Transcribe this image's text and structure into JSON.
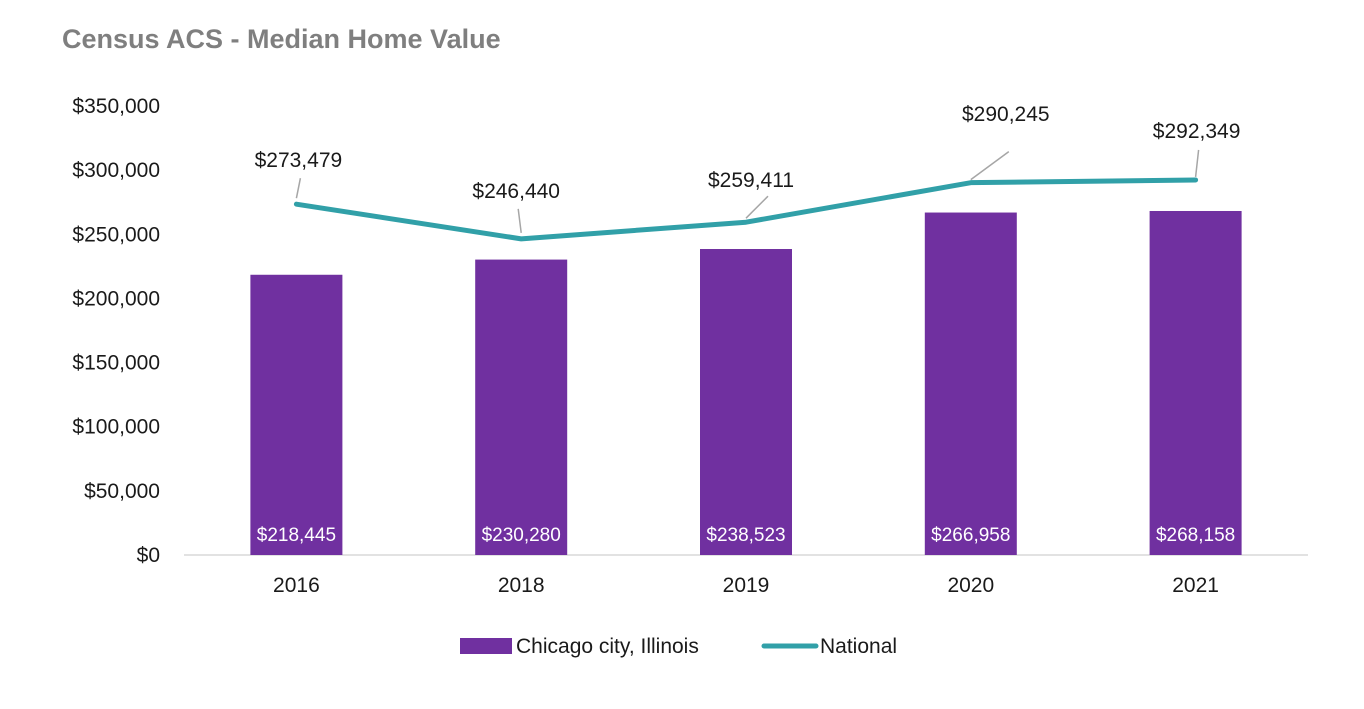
{
  "chart_data": {
    "type": "bar",
    "title": "Census ACS - Median Home Value",
    "categories": [
      "2016",
      "2018",
      "2019",
      "2020",
      "2021"
    ],
    "ylim": [
      0,
      350000
    ],
    "yticks": [
      0,
      50000,
      100000,
      150000,
      200000,
      250000,
      300000,
      350000
    ],
    "ytick_labels": [
      "$0",
      "$50,000",
      "$100,000",
      "$150,000",
      "$200,000",
      "$250,000",
      "$300,000",
      "$350,000"
    ],
    "grid": false,
    "legend_position": "bottom",
    "series": [
      {
        "name": "Chicago city, Illinois",
        "type": "bar",
        "color": "#7030a0",
        "values": [
          218445,
          230280,
          238523,
          266958,
          268158
        ],
        "labels": [
          "$218,445",
          "$230,280",
          "$238,523",
          "$266,958",
          "$268,158"
        ]
      },
      {
        "name": "National",
        "type": "line",
        "color": "#31a0a8",
        "values": [
          273479,
          246440,
          259411,
          290245,
          292349
        ],
        "labels": [
          "$273,479",
          "$246,440",
          "$259,411",
          "$290,245",
          "$292,349"
        ]
      }
    ]
  }
}
